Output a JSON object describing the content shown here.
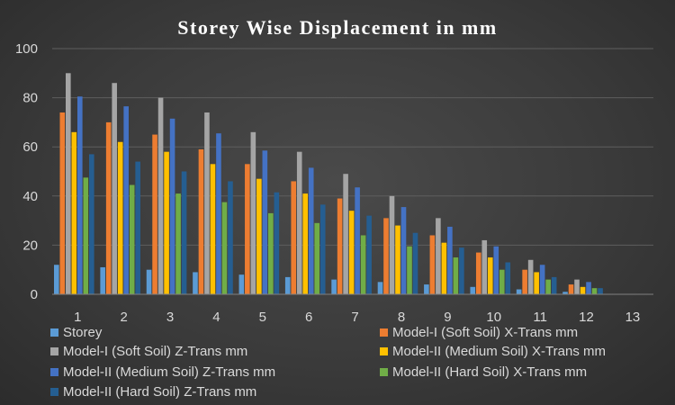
{
  "chart_data": {
    "type": "bar",
    "title": "Storey Wise Displacement in mm",
    "xlabel": "",
    "ylabel": "",
    "ylim": [
      0,
      100
    ],
    "yticks": [
      0,
      20,
      40,
      60,
      80,
      100
    ],
    "grid": true,
    "legend_position": "bottom",
    "categories": [
      "1",
      "2",
      "3",
      "4",
      "5",
      "6",
      "7",
      "8",
      "9",
      "10",
      "11",
      "12",
      "13"
    ],
    "series": [
      {
        "name": "Storey",
        "color": "#5b9bd5",
        "values": [
          12,
          11,
          10,
          9,
          8,
          7,
          6,
          5,
          4,
          3,
          2,
          1,
          0
        ]
      },
      {
        "name": "Model-I (Soft Soil) X-Trans mm",
        "color": "#ed7d31",
        "values": [
          74,
          70,
          65,
          59,
          53,
          46,
          39,
          31,
          24,
          17,
          10,
          4,
          0
        ]
      },
      {
        "name": "Model-I (Soft Soil) Z-Trans mm",
        "color": "#a5a5a5",
        "values": [
          90,
          86,
          80,
          74,
          66,
          58,
          49,
          40,
          31,
          22,
          14,
          6,
          0
        ]
      },
      {
        "name": "Model-II (Medium Soil) X-Trans mm",
        "color": "#ffc000",
        "values": [
          66,
          62,
          58,
          53,
          47,
          41,
          34,
          28,
          21,
          15,
          9,
          3,
          0
        ]
      },
      {
        "name": "Model-II (Medium Soil) Z-Trans mm",
        "color": "#4472c4",
        "values": [
          80.5,
          76.5,
          71.5,
          65.5,
          58.5,
          51.5,
          43.5,
          35.5,
          27.5,
          19.5,
          12,
          5,
          0
        ]
      },
      {
        "name": "Model-II (Hard Soil) X-Trans mm",
        "color": "#70ad47",
        "values": [
          47.5,
          44.5,
          41,
          37.5,
          33,
          29,
          24,
          19.5,
          15,
          10,
          6,
          2.5,
          0
        ]
      },
      {
        "name": "Model-II (Hard Soil) Z-Trans mm",
        "color": "#255e91",
        "values": [
          57,
          54,
          50,
          46,
          41.5,
          36.5,
          32,
          25,
          19,
          13,
          7,
          2.5,
          0
        ]
      }
    ]
  }
}
